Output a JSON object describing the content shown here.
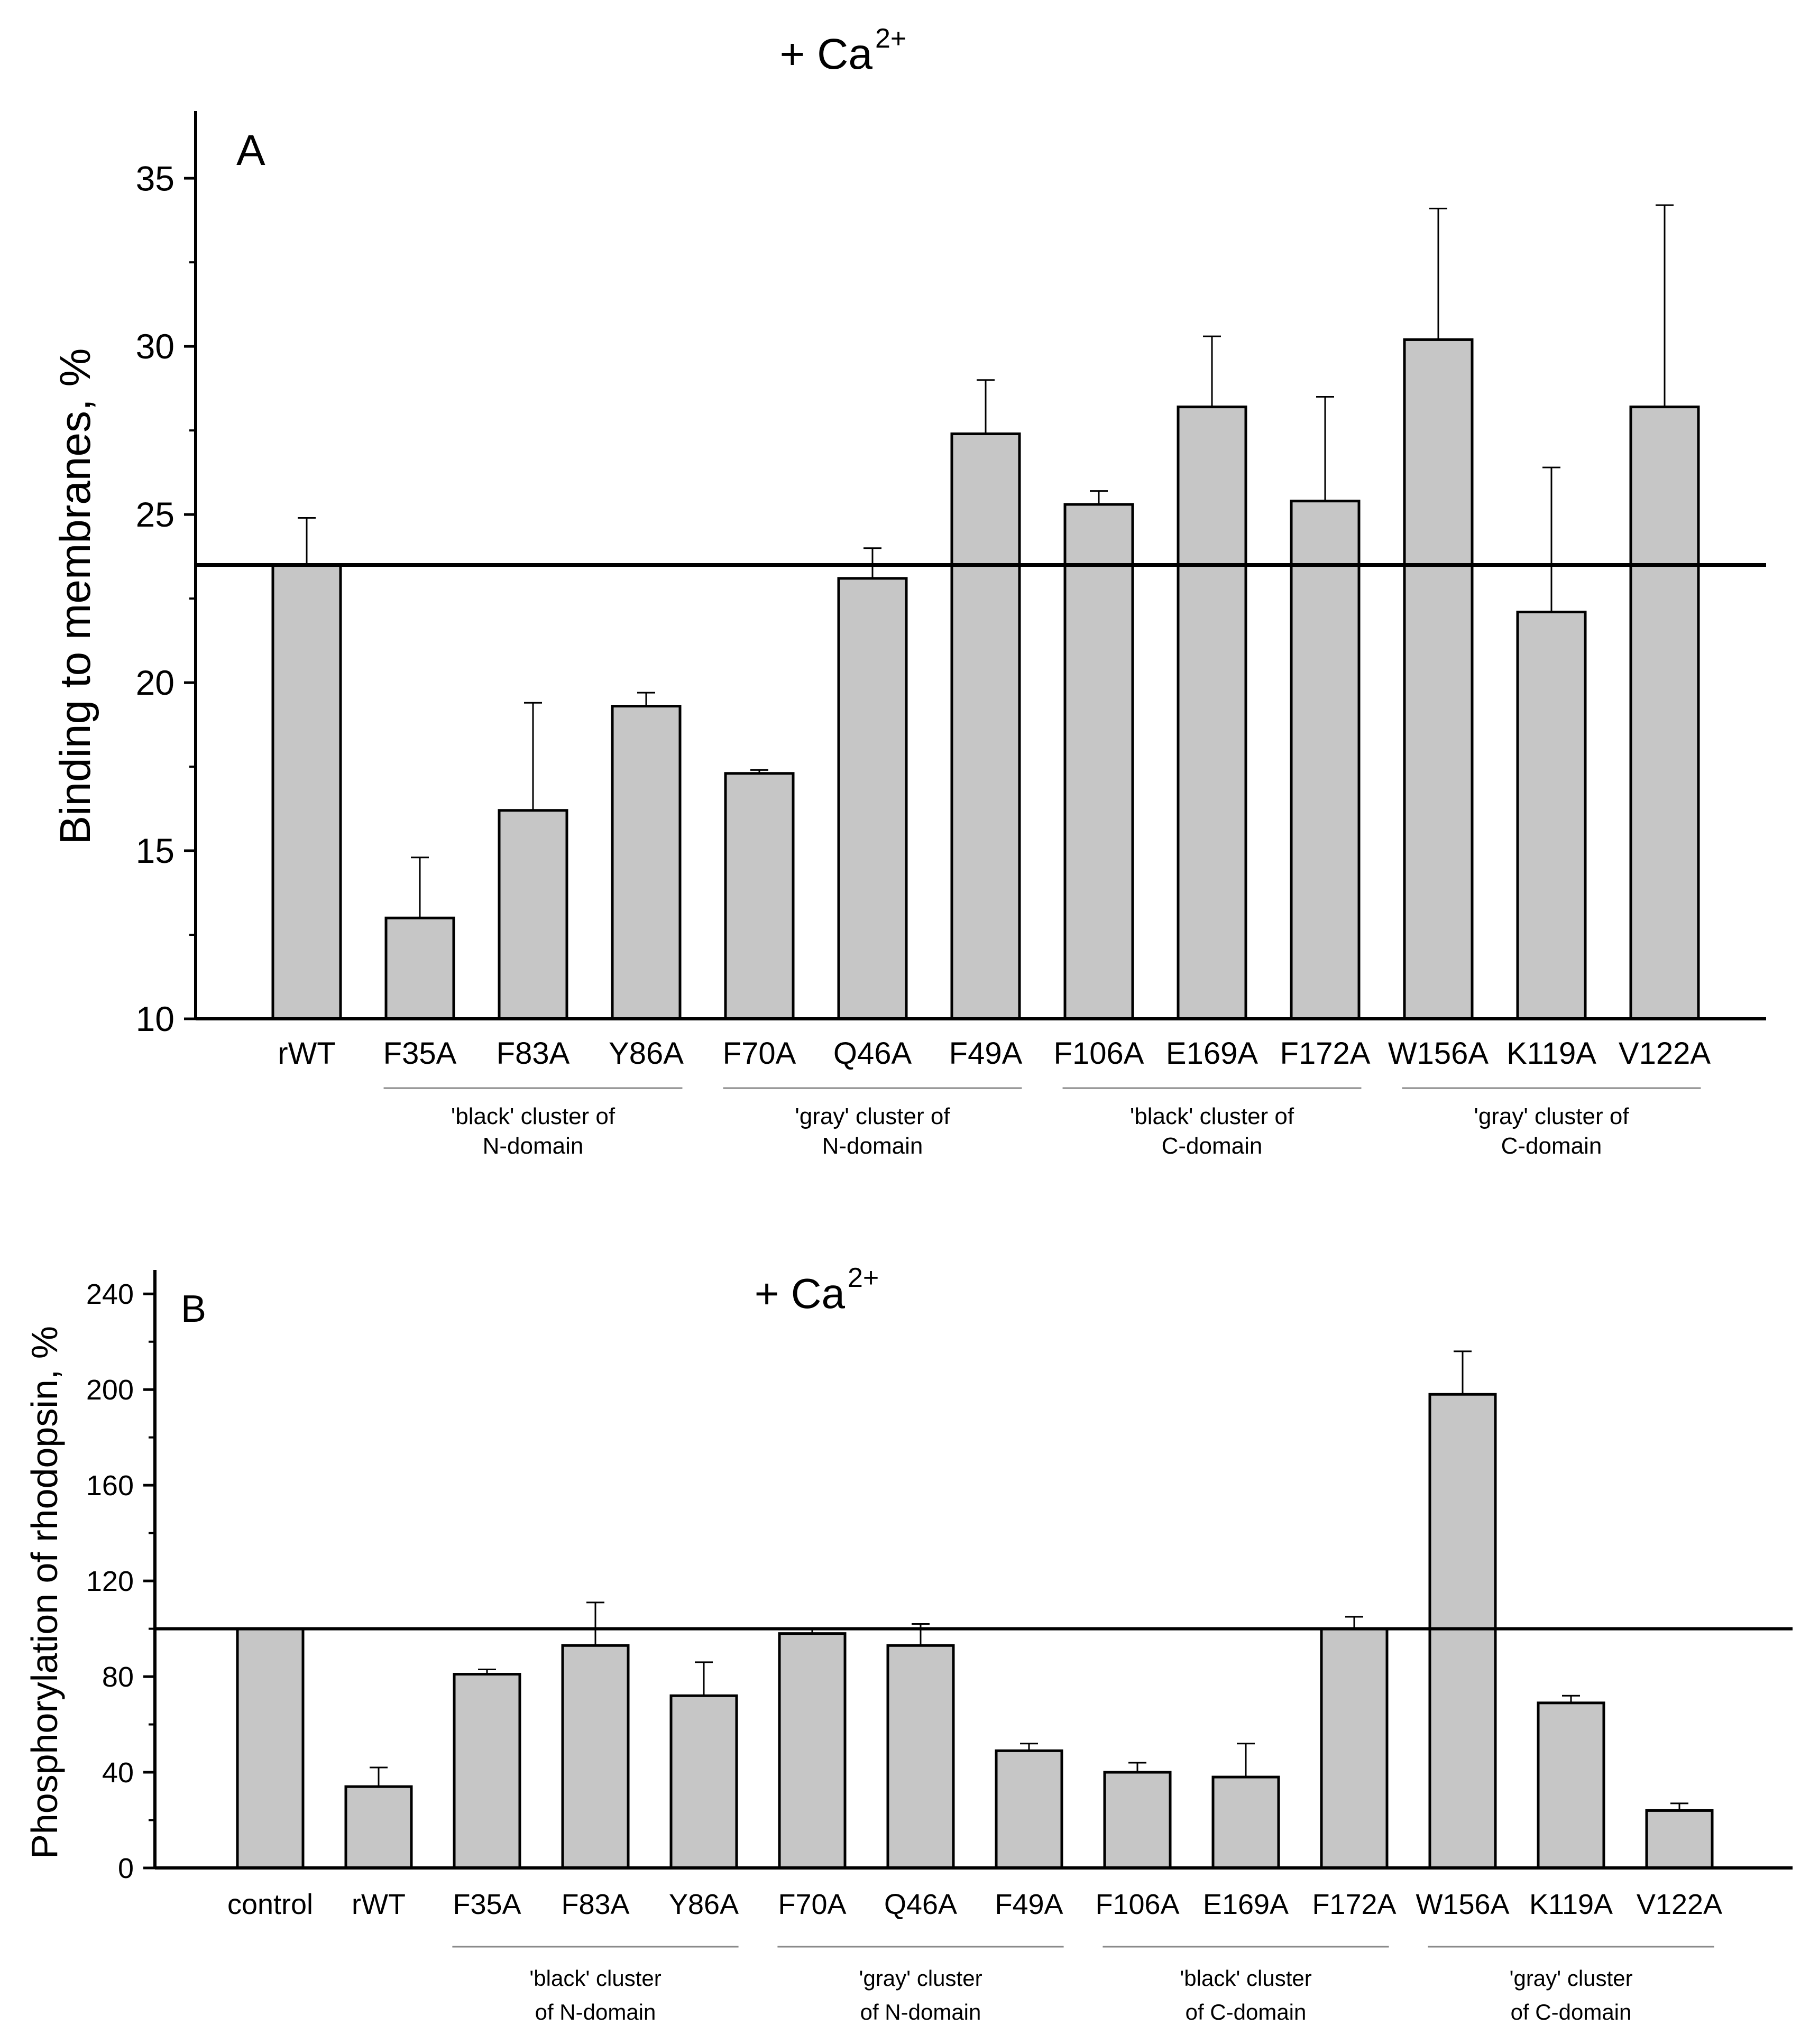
{
  "chart_data": [
    {
      "type": "bar",
      "panel_label": "A",
      "title_base": "+ Ca",
      "title_sup": "2+",
      "ylabel": "Binding to membranes, %",
      "ylim": [
        10,
        37
      ],
      "yticks": [
        10,
        15,
        20,
        25,
        30,
        35
      ],
      "reference_line": 23.5,
      "categories": [
        "rWT",
        "F35A",
        "F83A",
        "Y86A",
        "F70A",
        "Q46A",
        "F49A",
        "F106A",
        "E169A",
        "F172A",
        "W156A",
        "K119A",
        "V122A"
      ],
      "values": [
        23.5,
        13.0,
        16.2,
        19.3,
        17.3,
        23.1,
        27.4,
        25.3,
        28.2,
        25.4,
        30.2,
        22.1,
        28.2
      ],
      "error_tops": [
        24.9,
        14.8,
        19.4,
        19.7,
        17.4,
        24.0,
        29.0,
        25.7,
        30.3,
        28.5,
        34.1,
        26.4,
        34.2
      ],
      "groups": [
        {
          "line1": "'black' cluster of",
          "line2": "N-domain",
          "first": 1,
          "last": 3
        },
        {
          "line1": "'gray' cluster of",
          "line2": "N-domain",
          "first": 4,
          "last": 6
        },
        {
          "line1": "'black' cluster of",
          "line2": "C-domain",
          "first": 7,
          "last": 9
        },
        {
          "line1": "'gray' cluster of",
          "line2": "C-domain",
          "first": 10,
          "last": 12
        }
      ]
    },
    {
      "type": "bar",
      "panel_label": "B",
      "title_base": "+ Ca",
      "title_sup": "2+",
      "ylabel": "Phosphorylation of rhodopsin, %",
      "ylim": [
        0,
        250
      ],
      "yticks": [
        0,
        40,
        80,
        120,
        160,
        200,
        240
      ],
      "reference_line": 100,
      "categories": [
        "control",
        "rWT",
        "F35A",
        "F83A",
        "Y86A",
        "F70A",
        "Q46A",
        "F49A",
        "F106A",
        "E169A",
        "F172A",
        "W156A",
        "K119A",
        "V122A"
      ],
      "values": [
        100,
        34,
        81,
        93,
        72,
        98,
        93,
        49,
        40,
        38,
        100,
        198,
        69,
        24
      ],
      "error_tops": [
        100,
        42,
        83,
        111,
        86,
        100,
        102,
        52,
        44,
        52,
        105,
        216,
        72,
        27
      ],
      "groups": [
        {
          "line1": "'black' cluster",
          "line2": "of N-domain",
          "first": 2,
          "last": 4
        },
        {
          "line1": "'gray' cluster",
          "line2": "of N-domain",
          "first": 5,
          "last": 7
        },
        {
          "line1": "'black' cluster",
          "line2": "of C-domain",
          "first": 8,
          "last": 10
        },
        {
          "line1": "'gray' cluster",
          "line2": "of C-domain",
          "first": 11,
          "last": 13
        }
      ]
    }
  ]
}
